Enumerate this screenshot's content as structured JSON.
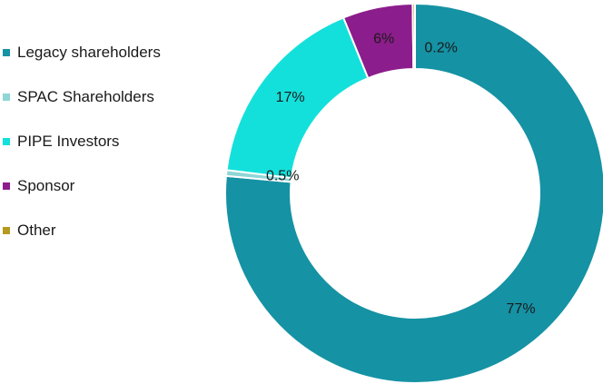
{
  "chart_data": {
    "type": "pie",
    "style": "donut",
    "categories": [
      "Legacy shareholders",
      "SPAC Shareholders",
      "PIPE Investors",
      "Sponsor",
      "Other"
    ],
    "values": [
      77,
      0.5,
      17,
      6,
      0.2
    ],
    "data_labels": [
      "77%",
      "0.5%",
      "17%",
      "6%",
      "0.2%"
    ],
    "colors": [
      "#1592a4",
      "#8fd6d6",
      "#14e0db",
      "#8c1d8c",
      "#b49a1e"
    ],
    "legend_position": "left",
    "start_angle_deg": 0,
    "direction": "clockwise",
    "unit": "%"
  }
}
